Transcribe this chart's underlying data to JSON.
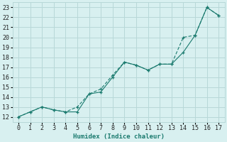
{
  "xlabel": "Humidex (Indice chaleur)",
  "bg_color": "#d8f0f0",
  "grid_color": "#b8d8d8",
  "line_color": "#1a7a6e",
  "xlim": [
    -0.5,
    17.5
  ],
  "ylim": [
    11.5,
    23.5
  ],
  "xticks": [
    0,
    1,
    2,
    3,
    4,
    5,
    6,
    7,
    8,
    9,
    10,
    11,
    12,
    13,
    14,
    15,
    16,
    17
  ],
  "yticks": [
    12,
    13,
    14,
    15,
    16,
    17,
    18,
    19,
    20,
    21,
    22,
    23
  ],
  "line1_x": [
    0,
    1,
    2,
    3,
    4,
    5,
    6,
    7,
    8,
    9,
    10,
    11,
    12,
    13,
    14,
    15,
    16,
    17
  ],
  "line1_y": [
    12.0,
    12.5,
    13.0,
    12.7,
    12.5,
    12.5,
    14.3,
    14.5,
    16.0,
    17.5,
    17.2,
    16.7,
    17.3,
    17.3,
    18.5,
    20.2,
    23.0,
    22.2
  ],
  "line2_x": [
    0,
    1,
    2,
    3,
    4,
    5,
    6,
    7,
    8,
    9,
    10,
    11,
    12,
    13,
    14,
    15,
    16,
    17
  ],
  "line2_y": [
    12.0,
    12.5,
    13.0,
    12.7,
    12.5,
    13.0,
    14.3,
    14.8,
    16.2,
    17.5,
    17.2,
    16.7,
    17.3,
    17.3,
    20.0,
    20.2,
    23.0,
    22.2
  ],
  "axis_fontsize": 6.5,
  "tick_fontsize": 6.0
}
